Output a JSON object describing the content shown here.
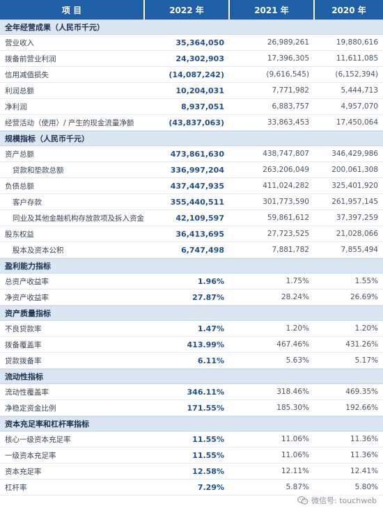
{
  "header": {
    "item": "项 目",
    "y2022": "2022 年",
    "y2021": "2021 年",
    "y2020": "2020 年"
  },
  "sections": [
    {
      "title": "全年经营成果（人民币千元）",
      "rows": [
        {
          "label": "营业收入",
          "v2022": "35,364,050",
          "v2021": "26,989,261",
          "v2020": "19,880,616",
          "indent": false
        },
        {
          "label": "拨备前营业利润",
          "v2022": "24,302,903",
          "v2021": "17,396,305",
          "v2020": "11,611,085",
          "indent": false
        },
        {
          "label": "信用减值损失",
          "v2022": "(14,087,242)",
          "v2021": "(9,616,545)",
          "v2020": "(6,152,394)",
          "indent": false
        },
        {
          "label": "利润总额",
          "v2022": "10,204,031",
          "v2021": "7,771,982",
          "v2020": "5,444,713",
          "indent": false
        },
        {
          "label": "净利润",
          "v2022": "8,937,051",
          "v2021": "6,883,757",
          "v2020": "4,957,070",
          "indent": false
        },
        {
          "label": "经营活动（使用）/ 产生的现金流量净额",
          "v2022": "(43,837,063)",
          "v2021": "33,863,453",
          "v2020": "17,450,064",
          "indent": false
        }
      ]
    },
    {
      "title": "规模指标（人民币千元）",
      "rows": [
        {
          "label": "资产总额",
          "v2022": "473,861,630",
          "v2021": "438,747,807",
          "v2020": "346,429,986",
          "indent": false
        },
        {
          "label": "贷款和垫款总额",
          "v2022": "336,997,204",
          "v2021": "263,206,049",
          "v2020": "200,061,308",
          "indent": true
        },
        {
          "label": "负债总额",
          "v2022": "437,447,935",
          "v2021": "411,024,282",
          "v2020": "325,401,920",
          "indent": false
        },
        {
          "label": "客户存款",
          "v2022": "355,440,511",
          "v2021": "301,773,590",
          "v2020": "261,957,145",
          "indent": true
        },
        {
          "label": "同业及其他金融机构存放款项及拆入资金",
          "v2022": "42,109,597",
          "v2021": "59,861,612",
          "v2020": "37,397,259",
          "indent": true
        },
        {
          "label": "股东权益",
          "v2022": "36,413,695",
          "v2021": "27,723,525",
          "v2020": "21,028,066",
          "indent": false
        },
        {
          "label": "股本及资本公积",
          "v2022": "6,747,498",
          "v2021": "7,881,782",
          "v2020": "7,855,494",
          "indent": true
        }
      ]
    },
    {
      "title": "盈利能力指标",
      "rows": [
        {
          "label": "总资产收益率",
          "v2022": "1.96%",
          "v2021": "1.75%",
          "v2020": "1.55%",
          "indent": false
        },
        {
          "label": "净资产收益率",
          "v2022": "27.87%",
          "v2021": "28.24%",
          "v2020": "26.69%",
          "indent": false
        }
      ]
    },
    {
      "title": "资产质量指标",
      "rows": [
        {
          "label": "不良贷款率",
          "v2022": "1.47%",
          "v2021": "1.20%",
          "v2020": "1.20%",
          "indent": false
        },
        {
          "label": "拨备覆盖率",
          "v2022": "413.99%",
          "v2021": "467.46%",
          "v2020": "431.26%",
          "indent": false
        },
        {
          "label": "贷款拨备率",
          "v2022": "6.11%",
          "v2021": "5.63%",
          "v2020": "5.17%",
          "indent": false
        }
      ]
    },
    {
      "title": "流动性指标",
      "rows": [
        {
          "label": "流动性覆盖率",
          "v2022": "346.11%",
          "v2021": "318.46%",
          "v2020": "469.35%",
          "indent": false
        },
        {
          "label": "净稳定资金比例",
          "v2022": "171.55%",
          "v2021": "185.30%",
          "v2020": "192.66%",
          "indent": false
        }
      ]
    },
    {
      "title": "资本充足率和杠杆率指标",
      "rows": [
        {
          "label": "核心一级资本充足率",
          "v2022": "11.55%",
          "v2021": "11.06%",
          "v2020": "11.36%",
          "indent": false
        },
        {
          "label": "一级资本充足率",
          "v2022": "11.55%",
          "v2021": "11.06%",
          "v2020": "11.36%",
          "indent": false
        },
        {
          "label": "资本充足率",
          "v2022": "12.58%",
          "v2021": "12.11%",
          "v2020": "12.41%",
          "indent": false
        },
        {
          "label": "杠杆率",
          "v2022": "7.29%",
          "v2021": "5.87%",
          "v2020": "5.80%",
          "indent": false
        }
      ]
    }
  ],
  "watermark": {
    "text": "微信号: touchweb",
    "icon": "wechat-icon"
  }
}
